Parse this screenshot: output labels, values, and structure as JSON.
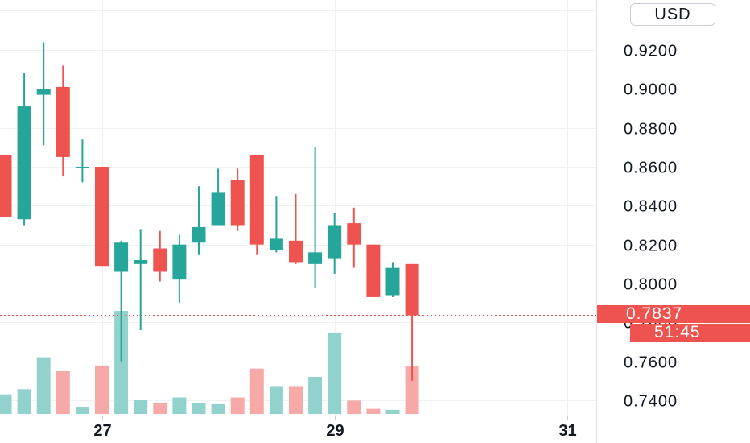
{
  "currency_button": {
    "label": "USD"
  },
  "last_price": {
    "value": "0.7837",
    "price": 0.7837,
    "countdown": "51:45",
    "color": "#ef5350"
  },
  "colors": {
    "up": "#26a69a",
    "down": "#ef5350",
    "volume_up": "#92d2cc",
    "volume_down": "#f7a9a7",
    "grid": "#f0f1f3",
    "axis_text": "#131722"
  },
  "chart_data": {
    "type": "candlestick",
    "title": "",
    "xlabel": "",
    "ylabel": "",
    "y_ticks": [
      "0.7400",
      "0.7600",
      "0.7800",
      "0.8000",
      "0.8200",
      "0.8400",
      "0.8600",
      "0.8800",
      "0.9000",
      "0.9200"
    ],
    "y_range": [
      0.734,
      0.945
    ],
    "x_ticks": [
      {
        "label": "27",
        "index": 4.5
      },
      {
        "label": "29",
        "index": 16.5
      },
      {
        "label": "31",
        "index": 28.5
      }
    ],
    "grid": true,
    "candles": [
      {
        "i": -0.5,
        "open": 0.866,
        "high": 0.866,
        "low": 0.834,
        "close": 0.834
      },
      {
        "i": 0.5,
        "open": 0.833,
        "high": 0.908,
        "low": 0.83,
        "close": 0.891
      },
      {
        "i": 1.5,
        "open": 0.897,
        "high": 0.924,
        "low": 0.871,
        "close": 0.9
      },
      {
        "i": 2.5,
        "open": 0.901,
        "high": 0.912,
        "low": 0.855,
        "close": 0.865
      },
      {
        "i": 3.5,
        "open": 0.86,
        "high": 0.874,
        "low": 0.852,
        "close": 0.86
      },
      {
        "i": 4.5,
        "open": 0.86,
        "high": 0.86,
        "low": 0.809,
        "close": 0.809
      },
      {
        "i": 5.5,
        "open": 0.806,
        "high": 0.822,
        "low": 0.76,
        "close": 0.821
      },
      {
        "i": 6.5,
        "open": 0.81,
        "high": 0.828,
        "low": 0.776,
        "close": 0.812
      },
      {
        "i": 7.5,
        "open": 0.818,
        "high": 0.827,
        "low": 0.801,
        "close": 0.806
      },
      {
        "i": 8.5,
        "open": 0.802,
        "high": 0.825,
        "low": 0.79,
        "close": 0.82
      },
      {
        "i": 9.5,
        "open": 0.821,
        "high": 0.85,
        "low": 0.815,
        "close": 0.829
      },
      {
        "i": 10.5,
        "open": 0.83,
        "high": 0.859,
        "low": 0.83,
        "close": 0.847
      },
      {
        "i": 11.5,
        "open": 0.853,
        "high": 0.859,
        "low": 0.827,
        "close": 0.83
      },
      {
        "i": 12.5,
        "open": 0.866,
        "high": 0.866,
        "low": 0.815,
        "close": 0.82
      },
      {
        "i": 13.5,
        "open": 0.817,
        "high": 0.845,
        "low": 0.816,
        "close": 0.823
      },
      {
        "i": 14.5,
        "open": 0.822,
        "high": 0.846,
        "low": 0.81,
        "close": 0.811
      },
      {
        "i": 15.5,
        "open": 0.81,
        "high": 0.87,
        "low": 0.798,
        "close": 0.816
      },
      {
        "i": 16.5,
        "open": 0.813,
        "high": 0.836,
        "low": 0.805,
        "close": 0.83
      },
      {
        "i": 17.5,
        "open": 0.831,
        "high": 0.839,
        "low": 0.808,
        "close": 0.82
      },
      {
        "i": 18.5,
        "open": 0.82,
        "high": 0.82,
        "low": 0.793,
        "close": 0.793
      },
      {
        "i": 19.5,
        "open": 0.794,
        "high": 0.811,
        "low": 0.793,
        "close": 0.808
      },
      {
        "i": 20.5,
        "open": 0.81,
        "high": 0.81,
        "low": 0.75,
        "close": 0.7837
      }
    ],
    "volume": [
      {
        "i": -0.5,
        "value": 0.19,
        "dir": "up"
      },
      {
        "i": 0.5,
        "value": 0.24,
        "dir": "up"
      },
      {
        "i": 1.5,
        "value": 0.55,
        "dir": "up"
      },
      {
        "i": 2.5,
        "value": 0.42,
        "dir": "down"
      },
      {
        "i": 3.5,
        "value": 0.07,
        "dir": "up"
      },
      {
        "i": 4.5,
        "value": 0.47,
        "dir": "down"
      },
      {
        "i": 5.5,
        "value": 1.0,
        "dir": "up"
      },
      {
        "i": 6.5,
        "value": 0.14,
        "dir": "up"
      },
      {
        "i": 7.5,
        "value": 0.11,
        "dir": "down"
      },
      {
        "i": 8.5,
        "value": 0.16,
        "dir": "up"
      },
      {
        "i": 9.5,
        "value": 0.11,
        "dir": "up"
      },
      {
        "i": 10.5,
        "value": 0.1,
        "dir": "up"
      },
      {
        "i": 11.5,
        "value": 0.16,
        "dir": "down"
      },
      {
        "i": 12.5,
        "value": 0.44,
        "dir": "down"
      },
      {
        "i": 13.5,
        "value": 0.27,
        "dir": "up"
      },
      {
        "i": 14.5,
        "value": 0.27,
        "dir": "down"
      },
      {
        "i": 15.5,
        "value": 0.36,
        "dir": "up"
      },
      {
        "i": 16.5,
        "value": 0.79,
        "dir": "up"
      },
      {
        "i": 17.5,
        "value": 0.13,
        "dir": "down"
      },
      {
        "i": 18.5,
        "value": 0.05,
        "dir": "down"
      },
      {
        "i": 19.5,
        "value": 0.04,
        "dir": "up"
      },
      {
        "i": 20.5,
        "value": 0.46,
        "dir": "down"
      }
    ]
  }
}
